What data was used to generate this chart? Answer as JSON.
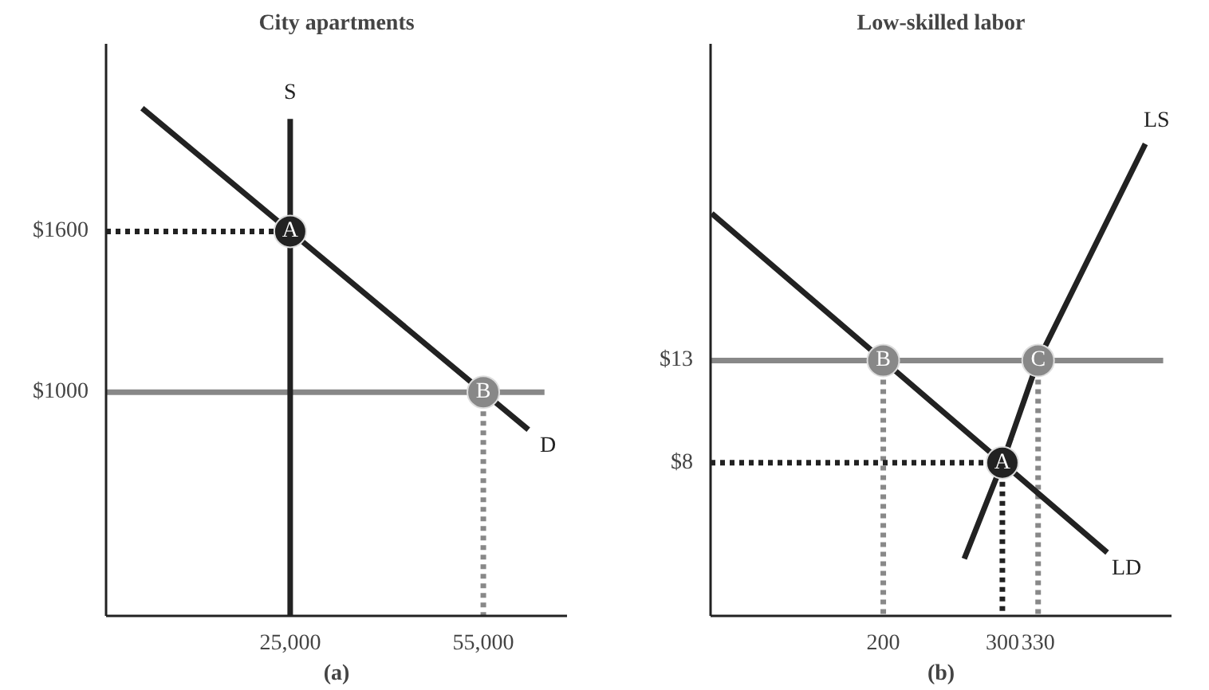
{
  "chart_data": [
    {
      "type": "line",
      "title": "City apartments",
      "xlabel": "(a)",
      "xlim": [
        -3600,
        68000
      ],
      "ylim": [
        165,
        2300
      ],
      "grid": false,
      "xticks": [
        {
          "value": 25000,
          "label": "25,000"
        },
        {
          "value": 55000,
          "label": "55,000"
        }
      ],
      "yticks": [
        {
          "value": 1000,
          "label": "$1000"
        },
        {
          "value": 1600,
          "label": "$1600"
        }
      ],
      "series": [
        {
          "color": "#888888",
          "x": [
            -3600,
            64500
          ],
          "values": [
            1000,
            1000
          ],
          "line_style": "solid"
        },
        {
          "color": "#888888",
          "x": [
            55000,
            55000
          ],
          "values": [
            1000,
            165
          ],
          "line_style": "dotted"
        },
        {
          "color": "#222222",
          "x": [
            -3600,
            25000
          ],
          "values": [
            1600,
            1600
          ],
          "line_style": "dotted"
        },
        {
          "name": "S",
          "color": "#222222",
          "x": [
            25000,
            25000
          ],
          "values": [
            165,
            2020
          ],
          "line_style": "solid"
        },
        {
          "name": "D",
          "color": "#222222",
          "x": [
            2000,
            25000,
            55000,
            62000
          ],
          "values": [
            2060,
            1600,
            1000,
            860
          ],
          "line_style": "solid"
        },
        {
          "type": "scatter",
          "marker": "circle",
          "x": [
            25000,
            55000
          ],
          "values": [
            1600,
            1000
          ],
          "colors": [
            "#222222",
            "#888888"
          ]
        }
      ],
      "annotations": [
        {
          "text": "A",
          "x": 25000,
          "y": 1600
        },
        {
          "text": "B",
          "x": 55000,
          "y": 1000
        }
      ]
    },
    {
      "type": "line",
      "title": "Low-skilled labor",
      "xlabel": "(b)",
      "xlim": [
        55,
        442
      ],
      "ylim": [
        0.5,
        28.5
      ],
      "grid": false,
      "xticks": [
        200,
        300,
        330
      ],
      "yticks": [
        {
          "value": 8,
          "label": "$8"
        },
        {
          "value": 13,
          "label": "$13"
        }
      ],
      "series": [
        {
          "color": "#888888",
          "x": [
            55,
            435
          ],
          "values": [
            13,
            13
          ],
          "line_style": "solid"
        },
        {
          "color": "#888888",
          "x": [
            200,
            200
          ],
          "values": [
            13,
            0.5
          ],
          "line_style": "dotted"
        },
        {
          "color": "#888888",
          "x": [
            330,
            330
          ],
          "values": [
            13,
            0.5
          ],
          "line_style": "dotted"
        },
        {
          "color": "#222222",
          "x": [
            55,
            300
          ],
          "values": [
            8,
            8
          ],
          "line_style": "dotted"
        },
        {
          "color": "#222222",
          "x": [
            300,
            300
          ],
          "values": [
            8,
            0.5
          ],
          "line_style": "dotted"
        },
        {
          "name": "LD",
          "color": "#222222",
          "x": [
            56,
            200,
            300,
            388
          ],
          "values": [
            20.2,
            13,
            8,
            3.6
          ],
          "line_style": "solid"
        },
        {
          "name": "LS",
          "color": "#222222",
          "x": [
            268,
            300,
            330,
            420
          ],
          "values": [
            3.3,
            8,
            13,
            23.6
          ],
          "line_style": "solid"
        },
        {
          "type": "scatter",
          "marker": "circle",
          "x": [
            300,
            200,
            330
          ],
          "values": [
            8,
            13,
            13
          ],
          "colors": [
            "#222222",
            "#888888",
            "#888888"
          ]
        }
      ],
      "annotations": [
        {
          "text": "A",
          "x": 300,
          "y": 8
        },
        {
          "text": "B",
          "x": 200,
          "y": 13
        },
        {
          "text": "C",
          "x": 330,
          "y": 13
        }
      ]
    }
  ]
}
